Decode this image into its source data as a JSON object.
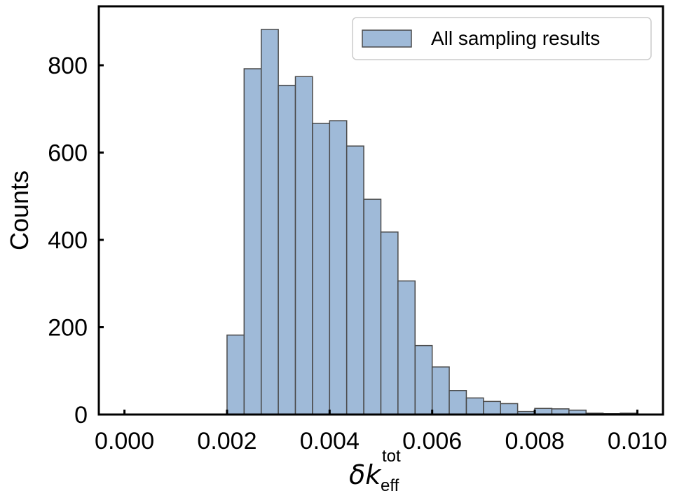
{
  "chart_data": {
    "type": "bar",
    "title": "",
    "xlabel": "δk_eff^tot",
    "xlabel_parts": {
      "symbol": "δk",
      "subscript": "eff",
      "superscript": "tot"
    },
    "ylabel": "Counts",
    "xlim": [
      -0.0005,
      0.0105
    ],
    "ylim": [
      0,
      935
    ],
    "x_ticks": [
      0.0,
      0.002,
      0.004,
      0.006,
      0.008,
      0.01
    ],
    "x_tick_labels": [
      "0.000",
      "0.002",
      "0.004",
      "0.006",
      "0.008",
      "0.010"
    ],
    "y_ticks": [
      0,
      200,
      400,
      600,
      800
    ],
    "y_tick_labels": [
      "0",
      "200",
      "400",
      "600",
      "800"
    ],
    "grid": false,
    "legend": {
      "position": "top-right",
      "entries": [
        "All sampling results"
      ]
    },
    "colors": {
      "bar_fill": "#9fbad8",
      "bar_edge": "#4a4a4a",
      "axis": "#000000"
    },
    "bin_width": 0.000333,
    "series": [
      {
        "name": "All sampling results",
        "bins": [
          {
            "x0": 0.002,
            "value": 182
          },
          {
            "x0": 0.002333,
            "value": 792
          },
          {
            "x0": 0.002667,
            "value": 882
          },
          {
            "x0": 0.003,
            "value": 754
          },
          {
            "x0": 0.003333,
            "value": 774
          },
          {
            "x0": 0.003667,
            "value": 667
          },
          {
            "x0": 0.004,
            "value": 673
          },
          {
            "x0": 0.004333,
            "value": 615
          },
          {
            "x0": 0.004667,
            "value": 493
          },
          {
            "x0": 0.005,
            "value": 418
          },
          {
            "x0": 0.005333,
            "value": 306
          },
          {
            "x0": 0.005667,
            "value": 158
          },
          {
            "x0": 0.006,
            "value": 109
          },
          {
            "x0": 0.006333,
            "value": 55
          },
          {
            "x0": 0.006667,
            "value": 38
          },
          {
            "x0": 0.007,
            "value": 30
          },
          {
            "x0": 0.007333,
            "value": 25
          },
          {
            "x0": 0.007667,
            "value": 7
          },
          {
            "x0": 0.008,
            "value": 14
          },
          {
            "x0": 0.008333,
            "value": 13
          },
          {
            "x0": 0.008667,
            "value": 10
          },
          {
            "x0": 0.009,
            "value": 3
          },
          {
            "x0": 0.009333,
            "value": 2
          },
          {
            "x0": 0.009667,
            "value": 3
          }
        ]
      }
    ]
  }
}
